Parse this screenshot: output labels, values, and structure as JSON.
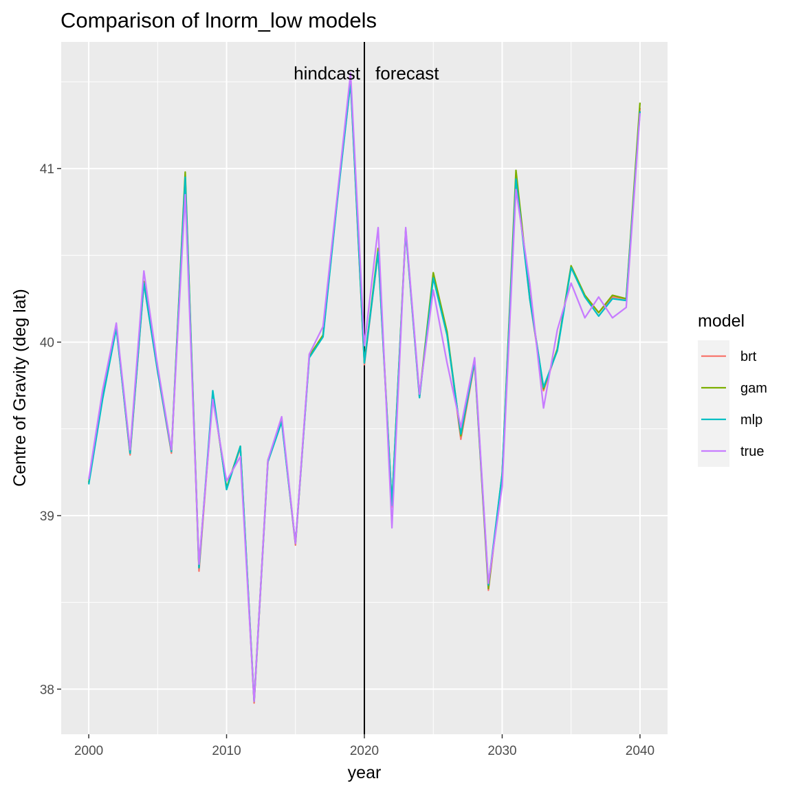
{
  "chart_data": {
    "type": "line",
    "title": "Comparison of lnorm_low models",
    "xlabel": "year",
    "ylabel": "Centre of Gravity (deg lat)",
    "xlim": [
      1998,
      2042
    ],
    "ylim": [
      37.74,
      41.73
    ],
    "x_ticks": [
      2000,
      2010,
      2020,
      2030,
      2040
    ],
    "y_ticks": [
      38,
      39,
      40,
      41
    ],
    "grid": true,
    "legend": {
      "title": "model",
      "position": "right"
    },
    "vline": {
      "x": 2020
    },
    "annotations": [
      {
        "text": "hindcast",
        "x": 2019.7,
        "y": 41.55,
        "align": "end"
      },
      {
        "text": "forecast",
        "x": 2020.8,
        "y": 41.55,
        "align": "start"
      }
    ],
    "x": [
      2000,
      2001,
      2002,
      2003,
      2004,
      2005,
      2006,
      2007,
      2008,
      2009,
      2010,
      2011,
      2012,
      2013,
      2014,
      2015,
      2016,
      2017,
      2018,
      2019,
      2020,
      2021,
      2022,
      2023,
      2024,
      2025,
      2026,
      2027,
      2028,
      2029,
      2030,
      2031,
      2032,
      2033,
      2034,
      2035,
      2036,
      2037,
      2038,
      2039,
      2040
    ],
    "series": [
      {
        "name": "brt",
        "color": "#F8766D",
        "values": [
          39.19,
          39.68,
          40.09,
          39.35,
          40.34,
          39.83,
          39.36,
          40.96,
          38.68,
          39.7,
          39.16,
          39.39,
          37.92,
          39.31,
          39.55,
          38.83,
          39.92,
          40.04,
          40.8,
          41.5,
          39.87,
          40.52,
          39.05,
          40.64,
          39.68,
          40.39,
          40.05,
          39.44,
          39.88,
          38.57,
          39.23,
          40.96,
          40.25,
          39.72,
          39.96,
          40.43,
          40.27,
          40.17,
          40.26,
          40.25,
          41.35
        ]
      },
      {
        "name": "gam",
        "color": "#7CAE00",
        "values": [
          39.19,
          39.68,
          40.09,
          39.36,
          40.35,
          39.84,
          39.37,
          40.98,
          38.7,
          39.7,
          39.16,
          39.4,
          37.93,
          39.32,
          39.55,
          38.84,
          39.92,
          40.04,
          40.8,
          41.52,
          39.88,
          40.54,
          39.06,
          40.65,
          39.69,
          40.4,
          40.06,
          39.46,
          39.89,
          38.58,
          39.24,
          40.99,
          40.26,
          39.73,
          39.96,
          40.44,
          40.27,
          40.17,
          40.27,
          40.25,
          41.38
        ]
      },
      {
        "name": "mlp",
        "color": "#00BFC4",
        "values": [
          39.18,
          39.67,
          40.08,
          39.36,
          40.34,
          39.83,
          39.37,
          40.95,
          38.7,
          39.72,
          39.15,
          39.4,
          37.93,
          39.31,
          39.54,
          38.84,
          39.91,
          40.03,
          40.79,
          41.5,
          39.88,
          40.52,
          39.06,
          40.64,
          39.68,
          40.37,
          40.04,
          39.47,
          39.89,
          38.6,
          39.24,
          40.94,
          40.25,
          39.74,
          39.95,
          40.43,
          40.26,
          40.15,
          40.25,
          40.24,
          41.33
        ]
      },
      {
        "name": "true",
        "color": "#C77CFF",
        "values": [
          39.21,
          39.72,
          40.11,
          39.38,
          40.41,
          39.86,
          39.38,
          40.85,
          38.72,
          39.67,
          39.2,
          39.34,
          37.93,
          39.32,
          39.57,
          38.84,
          39.93,
          40.09,
          40.82,
          41.55,
          39.98,
          40.66,
          38.93,
          40.66,
          39.7,
          40.3,
          39.88,
          39.51,
          39.91,
          38.61,
          39.17,
          40.88,
          40.34,
          39.62,
          40.07,
          40.34,
          40.14,
          40.26,
          40.14,
          40.2,
          41.32
        ]
      }
    ]
  }
}
